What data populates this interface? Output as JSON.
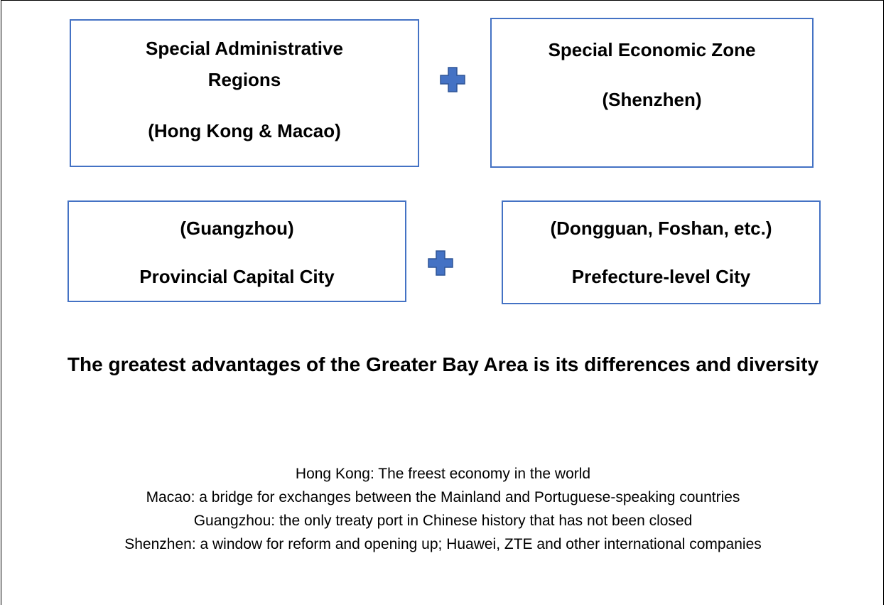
{
  "boxes": [
    {
      "lines": [
        "Special Administrative",
        "Regions",
        "(Hong Kong & Macao)"
      ]
    },
    {
      "lines": [
        "Special Economic Zone",
        "(Shenzhen)"
      ]
    },
    {
      "lines": [
        "(Guangzhou)",
        "Provincial Capital City"
      ]
    },
    {
      "lines": [
        "(Dongguan, Foshan, etc.)",
        "Prefecture-level City"
      ]
    }
  ],
  "heading": "The greatest advantages of the Greater Bay Area is its differences and diversity",
  "notes": [
    "Hong Kong: The freest economy in the world",
    "Macao: a bridge for exchanges between the Mainland and Portuguese-speaking countries",
    "Guangzhou: the only treaty port in Chinese history that has not been closed",
    "Shenzhen: a window for reform and opening up; Huawei, ZTE and other international companies"
  ]
}
